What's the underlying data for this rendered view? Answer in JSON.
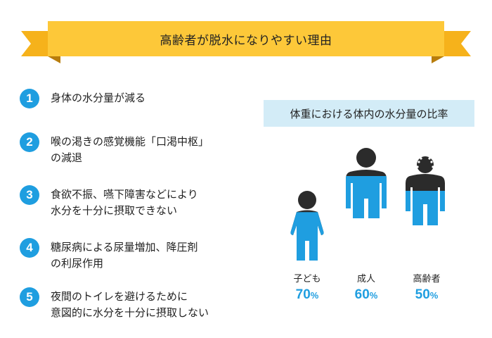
{
  "title": "高齢者が脱水になりやすい理由",
  "reasons": [
    {
      "num": "1",
      "line1": "身体の水分量が減る",
      "line2": ""
    },
    {
      "num": "2",
      "line1": "喉の渇きの感覚機能「口渇中枢」",
      "line2": "の減退"
    },
    {
      "num": "3",
      "line1": "食欲不振、嚥下障害などにより",
      "line2": "水分を十分に摂取できない"
    },
    {
      "num": "4",
      "line1": "糖尿病による尿量増加、降圧剤",
      "line2": "の利尿作用"
    },
    {
      "num": "5",
      "line1": "夜間のトイレを避けるために",
      "line2": "意図的に水分を十分に摂取しない"
    }
  ],
  "ratio_heading": "体重における体内の水分量の比率",
  "figures": [
    {
      "name": "子ども",
      "value": "70",
      "unit": "%",
      "water_fraction": 0.7
    },
    {
      "name": "成人",
      "value": "60",
      "unit": "%",
      "water_fraction": 0.6
    },
    {
      "name": "高齢者",
      "value": "50",
      "unit": "%",
      "water_fraction": 0.5
    }
  ],
  "colors": {
    "banner": "#fdc839",
    "banner_tail": "#f6b21b",
    "accent_blue": "#1f9ee0",
    "dark_body": "#2b2b2b",
    "ratio_bg": "#d3ecf7"
  }
}
